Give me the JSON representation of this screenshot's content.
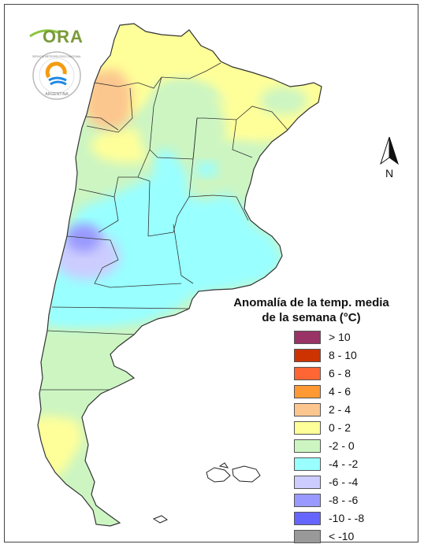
{
  "logo": {
    "ora_text": "ORA",
    "smn_ring_text": "SERVICIO METEOROLÓGICO NACIONAL",
    "smn_bottom_text": "ARGENTINA"
  },
  "north_arrow": {
    "label": "N"
  },
  "legend": {
    "title_line1": "Anomalía de la temp. media",
    "title_line2": "de la semana (°C)",
    "items": [
      {
        "label": "> 10",
        "color": "#993366"
      },
      {
        "label": "8 - 10",
        "color": "#cc3300"
      },
      {
        "label": "6 - 8",
        "color": "#ff6633"
      },
      {
        "label": "4 - 6",
        "color": "#ff9933"
      },
      {
        "label": "2 - 4",
        "color": "#fcc68f"
      },
      {
        "label": "0 - 2",
        "color": "#ffff99"
      },
      {
        "label": "-2 - 0",
        "color": "#ccf5c2"
      },
      {
        "label": "-4 - -2",
        "color": "#99ffff"
      },
      {
        "label": "-6 - -4",
        "color": "#ccccff"
      },
      {
        "label": "-8 - -6",
        "color": "#9999ff"
      },
      {
        "label": "-10 - -8",
        "color": "#6666ff"
      },
      {
        "label": "< -10",
        "color": "#999999"
      }
    ]
  },
  "colors": {
    "border": "#333333",
    "land_base": "#ccf5c2"
  }
}
